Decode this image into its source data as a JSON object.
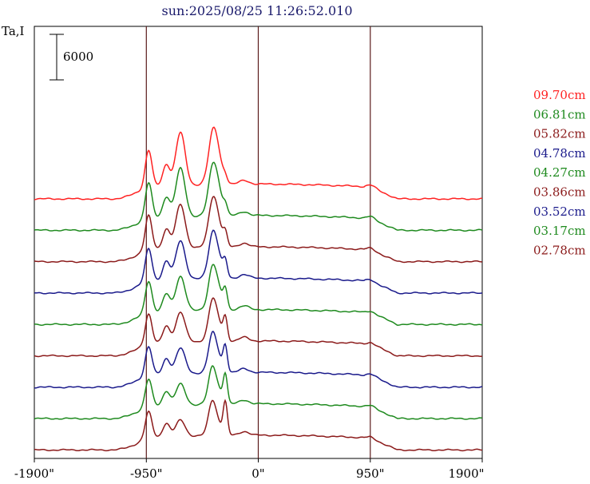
{
  "chart_data": {
    "type": "line",
    "title": "sun:2025/08/25 11:26:52.010",
    "ylabel": "Ta,I",
    "scale_bar_label": "6000",
    "x_ticks": [
      "-1900\"",
      "-950\"",
      "0\"",
      "950\"",
      "1900\""
    ],
    "x_tick_values": [
      -1900,
      -950,
      0,
      950,
      1900
    ],
    "xlim": [
      -1900,
      1900
    ],
    "vertical_lines": [
      -950,
      0,
      950
    ],
    "vertical_line_color": "#5a1a1a",
    "series": [
      {
        "name": "09.70cm",
        "color": "#ff2222"
      },
      {
        "name": "06.81cm",
        "color": "#1e8a1e"
      },
      {
        "name": "05.82cm",
        "color": "#8b1a1a"
      },
      {
        "name": "04.78cm",
        "color": "#1a1a8b"
      },
      {
        "name": "04.27cm",
        "color": "#1e8a1e"
      },
      {
        "name": "03.86cm",
        "color": "#8b1a1a"
      },
      {
        "name": "03.52cm",
        "color": "#1a1a8b"
      },
      {
        "name": "03.17cm",
        "color": "#1e8a1e"
      },
      {
        "name": "02.78cm",
        "color": "#8b1a1a"
      }
    ]
  },
  "colors": {
    "title": "#1a1a6b",
    "axis": "#000000",
    "background": "#ffffff"
  }
}
